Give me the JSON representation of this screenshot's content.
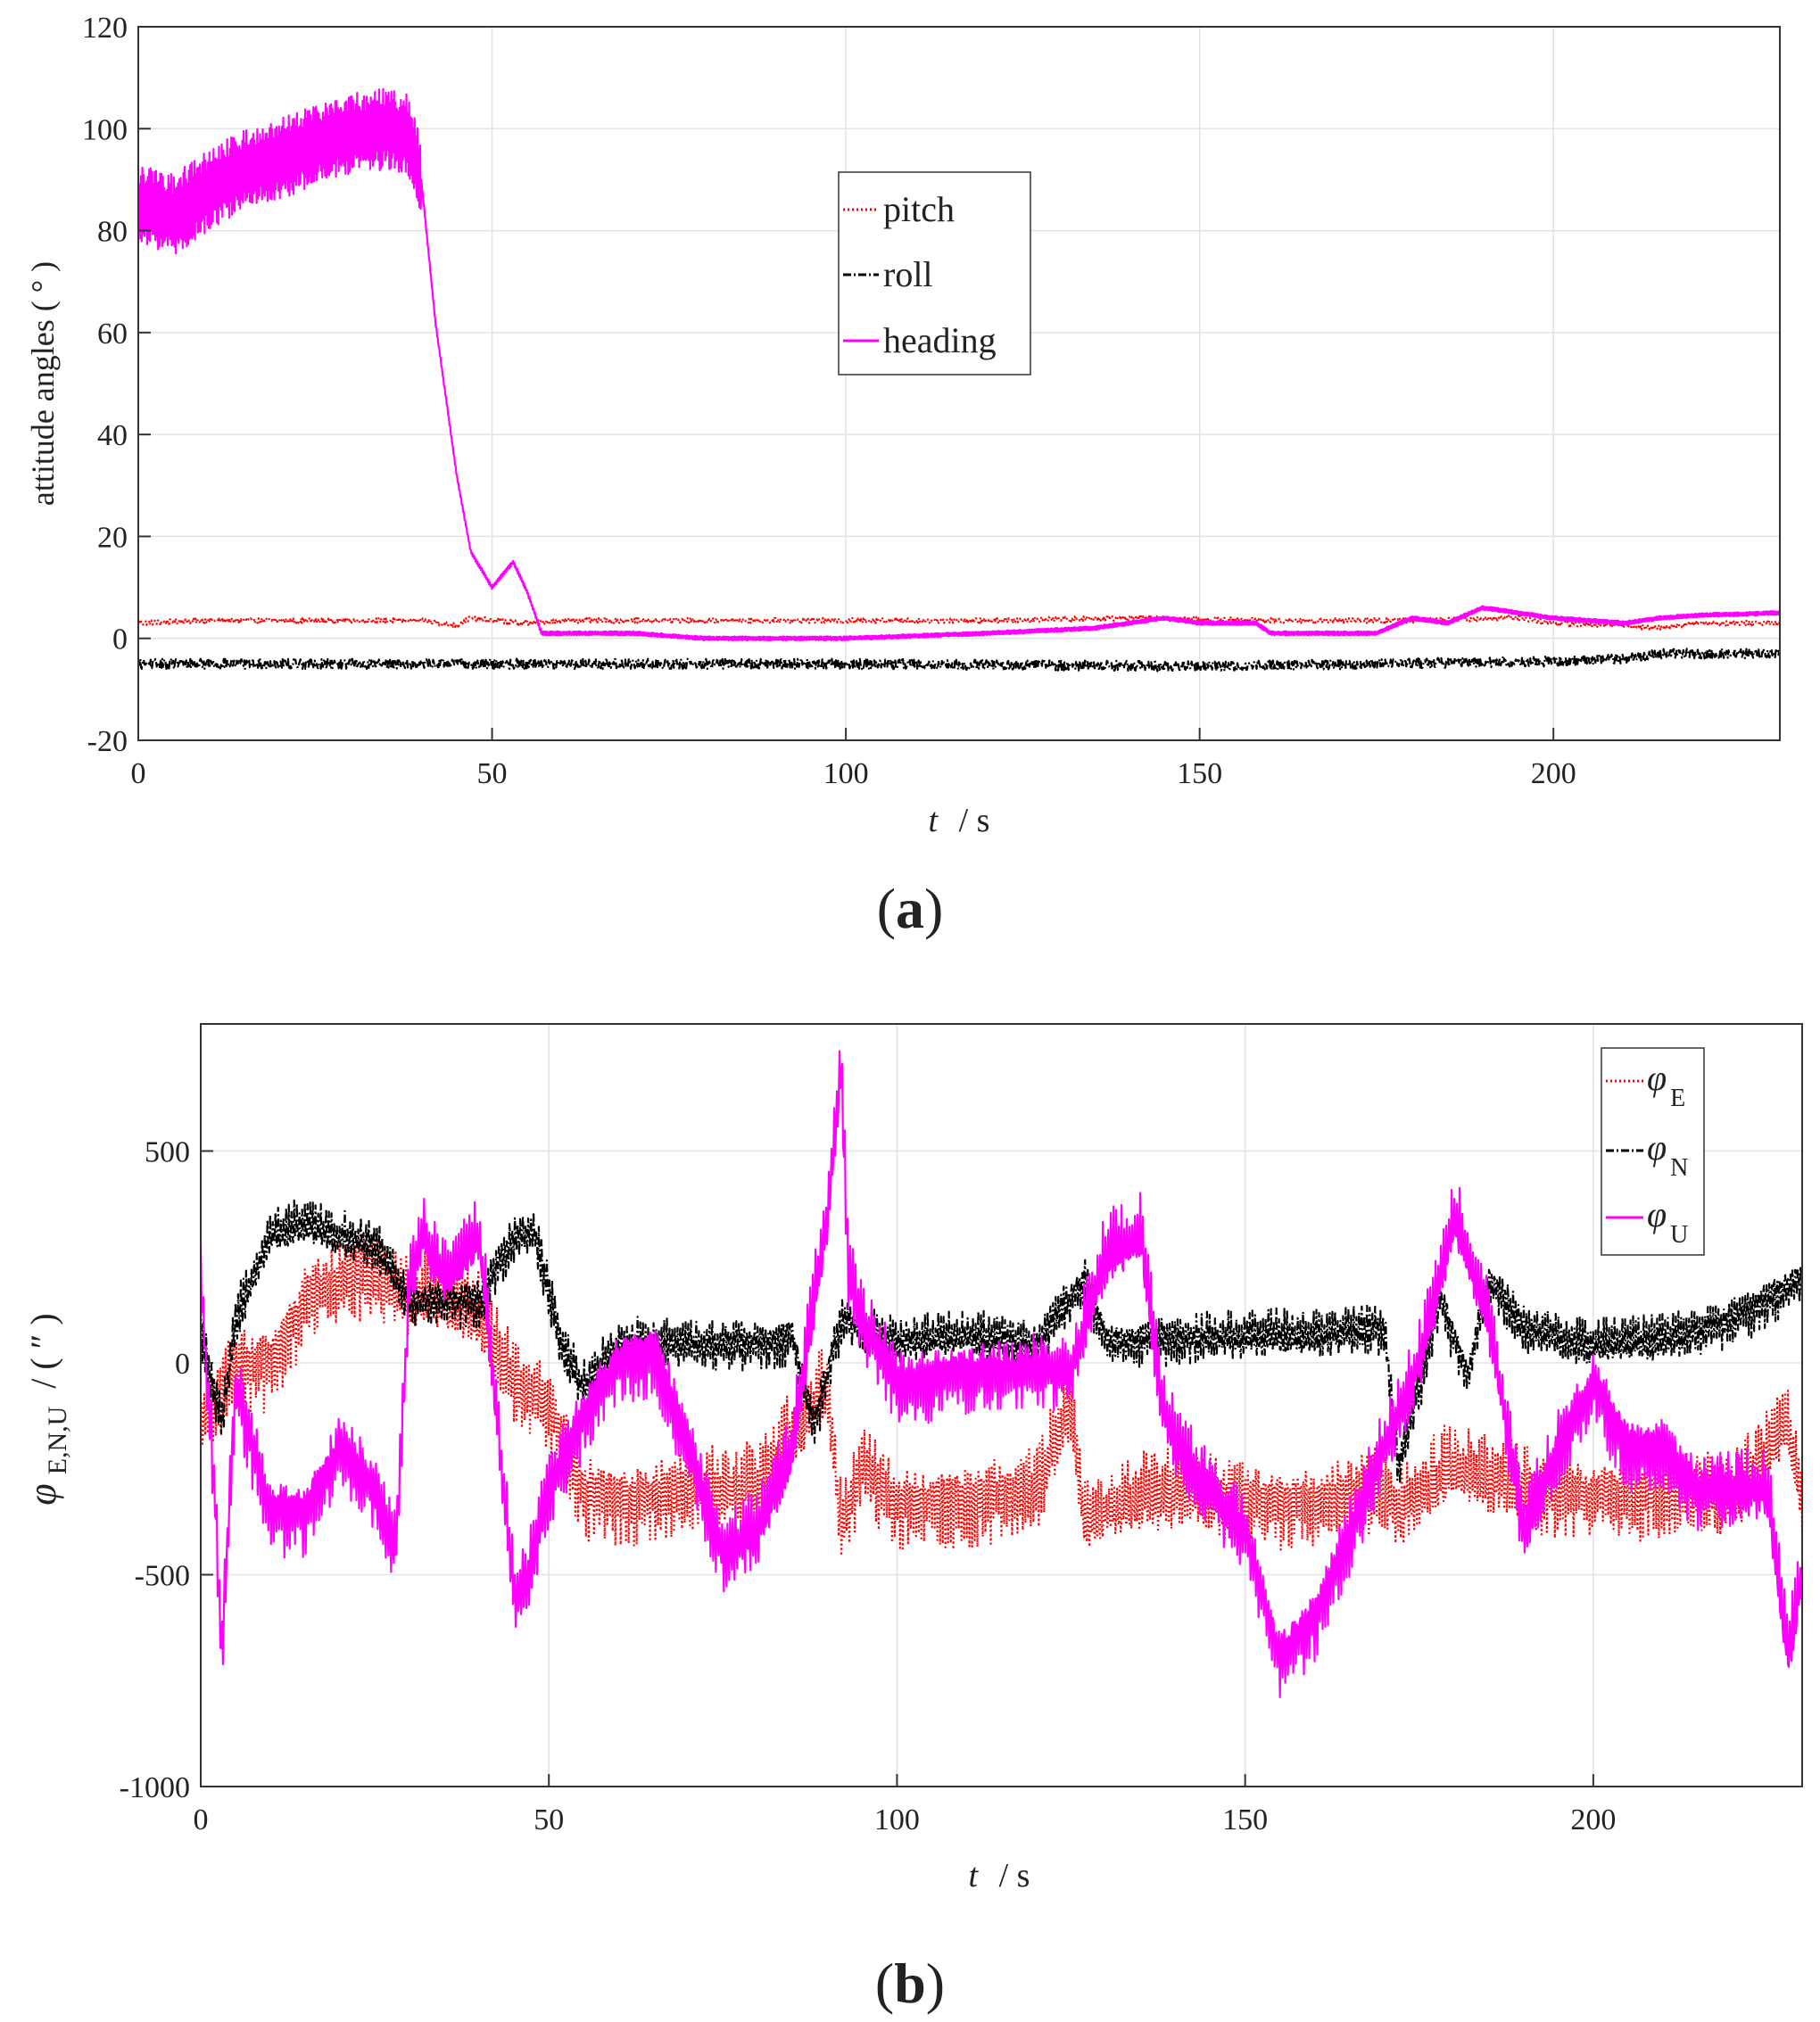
{
  "chart_data": [
    {
      "panel": "(a)",
      "panel_letter": "a",
      "type": "line",
      "xlabel": "t",
      "xlabel_unit": "/ s",
      "ylabel": "attitude angles ( ° )",
      "xlim": [
        0,
        232
      ],
      "ylim": [
        -20,
        120
      ],
      "xticks": [
        0,
        50,
        100,
        150,
        200
      ],
      "yticks": [
        -20,
        0,
        20,
        40,
        60,
        80,
        100,
        120
      ],
      "xtick_labels": [
        "0",
        "50",
        "100",
        "150",
        "200"
      ],
      "ytick_labels": [
        "-20",
        "0",
        "20",
        "40",
        "60",
        "80",
        "100",
        "120"
      ],
      "grid": true,
      "legend_position": "upper-center",
      "series": [
        {
          "name": "pitch",
          "color": "#ff0000",
          "style": "dotted",
          "x": [
            0,
            10,
            20,
            30,
            40,
            45,
            47,
            50,
            55,
            60,
            80,
            100,
            120,
            140,
            160,
            180,
            195,
            200,
            210,
            215,
            220,
            232
          ],
          "values": [
            3,
            3.5,
            3.5,
            3.5,
            3.5,
            2.5,
            4,
            3.5,
            3,
            3.5,
            3.5,
            3.5,
            3.5,
            4,
            3.5,
            3.5,
            4,
            3,
            2.5,
            2,
            3,
            3
          ],
          "noise": 0.5
        },
        {
          "name": "roll",
          "color": "#000000",
          "style": "dashdot",
          "x": [
            0,
            50,
            100,
            150,
            200,
            210,
            215,
            232
          ],
          "values": [
            -5,
            -5,
            -5,
            -5.5,
            -4.5,
            -4,
            -3,
            -3
          ],
          "noise": 1.0
        },
        {
          "name": "heading",
          "color": "#ff00ff",
          "style": "solid",
          "x": [
            0,
            5,
            10,
            15,
            20,
            25,
            30,
            35,
            38,
            40,
            42,
            45,
            47,
            50,
            53,
            55,
            57,
            60,
            70,
            80,
            100,
            120,
            135,
            140,
            145,
            150,
            158,
            160,
            170,
            175,
            180,
            185,
            190,
            195,
            200,
            210,
            215,
            220,
            232
          ],
          "values": [
            85,
            83,
            88,
            92,
            94,
            97,
            99,
            100,
            99,
            90,
            62,
            32,
            17,
            10,
            15,
            9,
            1,
            1,
            1,
            0,
            0,
            1,
            2,
            3,
            4,
            3,
            3,
            1,
            1,
            1,
            4,
            3,
            6,
            5,
            4,
            3,
            4,
            4.5,
            5
          ],
          "noise_segments": [
            {
              "from": 0,
              "to": 40,
              "amplitude": 8
            },
            {
              "from": 40,
              "to": 232,
              "amplitude": 0.4
            }
          ]
        }
      ]
    },
    {
      "panel": "(b)",
      "panel_letter": "b",
      "type": "line",
      "xlabel": "t",
      "xlabel_unit": "/ s",
      "ylabel_symbol": "φ",
      "ylabel_subscript": "E,N,U",
      "ylabel_unit": "/ ( ″ )",
      "xlim": [
        0,
        230
      ],
      "ylim": [
        -1000,
        800
      ],
      "xticks": [
        0,
        50,
        100,
        150,
        200
      ],
      "yticks": [
        -1000,
        -500,
        0,
        500
      ],
      "xtick_labels": [
        "0",
        "50",
        "100",
        "150",
        "200"
      ],
      "ytick_labels": [
        "-1000",
        "-500",
        "0",
        "500"
      ],
      "grid": true,
      "legend_position": "upper-right",
      "series": [
        {
          "name": "φ_E",
          "symbol": "φ",
          "subscript": "E",
          "color": "#ff0000",
          "style": "dotted",
          "x": [
            0,
            2,
            5,
            10,
            15,
            20,
            25,
            30,
            35,
            40,
            45,
            50,
            55,
            60,
            70,
            80,
            90,
            92,
            95,
            100,
            110,
            120,
            125,
            127,
            130,
            140,
            150,
            160,
            170,
            172,
            180,
            190,
            200,
            210,
            220,
            228,
            230
          ],
          "values": [
            -150,
            -100,
            0,
            0,
            150,
            200,
            200,
            150,
            150,
            100,
            -50,
            -100,
            -300,
            -320,
            -300,
            -300,
            -60,
            -400,
            -250,
            -330,
            -320,
            -300,
            -100,
            -380,
            -350,
            -300,
            -320,
            -330,
            -300,
            -350,
            -250,
            -300,
            -310,
            -300,
            -320,
            -150,
            -350
          ],
          "oscillation_amplitude": 120
        },
        {
          "name": "φ_N",
          "symbol": "φ",
          "subscript": "N",
          "color": "#000000",
          "style": "dashdot",
          "x": [
            0,
            3,
            5,
            10,
            15,
            20,
            25,
            30,
            35,
            40,
            45,
            48,
            52,
            55,
            60,
            70,
            80,
            85,
            88,
            92,
            100,
            110,
            120,
            127,
            130,
            140,
            150,
            160,
            170,
            172,
            178,
            182,
            185,
            190,
            200,
            210,
            220,
            225,
            230
          ],
          "values": [
            80,
            -150,
            100,
            300,
            320,
            300,
            280,
            150,
            150,
            150,
            300,
            300,
            30,
            -60,
            40,
            40,
            50,
            60,
            -150,
            100,
            50,
            60,
            40,
            200,
            50,
            60,
            60,
            60,
            80,
            -250,
            150,
            -30,
            200,
            80,
            40,
            50,
            100,
            150,
            200
          ],
          "oscillation_amplitude": 70
        },
        {
          "name": "φ_U",
          "symbol": "φ",
          "subscript": "U",
          "color": "#ff00ff",
          "style": "solid",
          "x": [
            0,
            2,
            3,
            5,
            10,
            15,
            20,
            25,
            28,
            30,
            32,
            35,
            40,
            45,
            47,
            50,
            55,
            60,
            65,
            70,
            75,
            80,
            85,
            90,
            92,
            93,
            95,
            100,
            110,
            120,
            125,
            130,
            135,
            138,
            140,
            150,
            155,
            160,
            165,
            170,
            175,
            178,
            180,
            185,
            190,
            195,
            200,
            205,
            210,
            215,
            220,
            225,
            228,
            230
          ],
          "values": [
            200,
            -300,
            -700,
            -50,
            -350,
            -350,
            -200,
            -300,
            -450,
            200,
            300,
            200,
            300,
            -550,
            -500,
            -300,
            -120,
            0,
            30,
            -200,
            -450,
            -400,
            -200,
            350,
            700,
            200,
            100,
            -50,
            -20,
            -20,
            -20,
            250,
            300,
            -100,
            -200,
            -400,
            -700,
            -600,
            -400,
            -200,
            0,
            200,
            350,
            100,
            -400,
            -200,
            -50,
            -200,
            -200,
            -300,
            -300,
            -300,
            -700,
            -500
          ],
          "oscillation_amplitude": 110
        }
      ]
    }
  ]
}
